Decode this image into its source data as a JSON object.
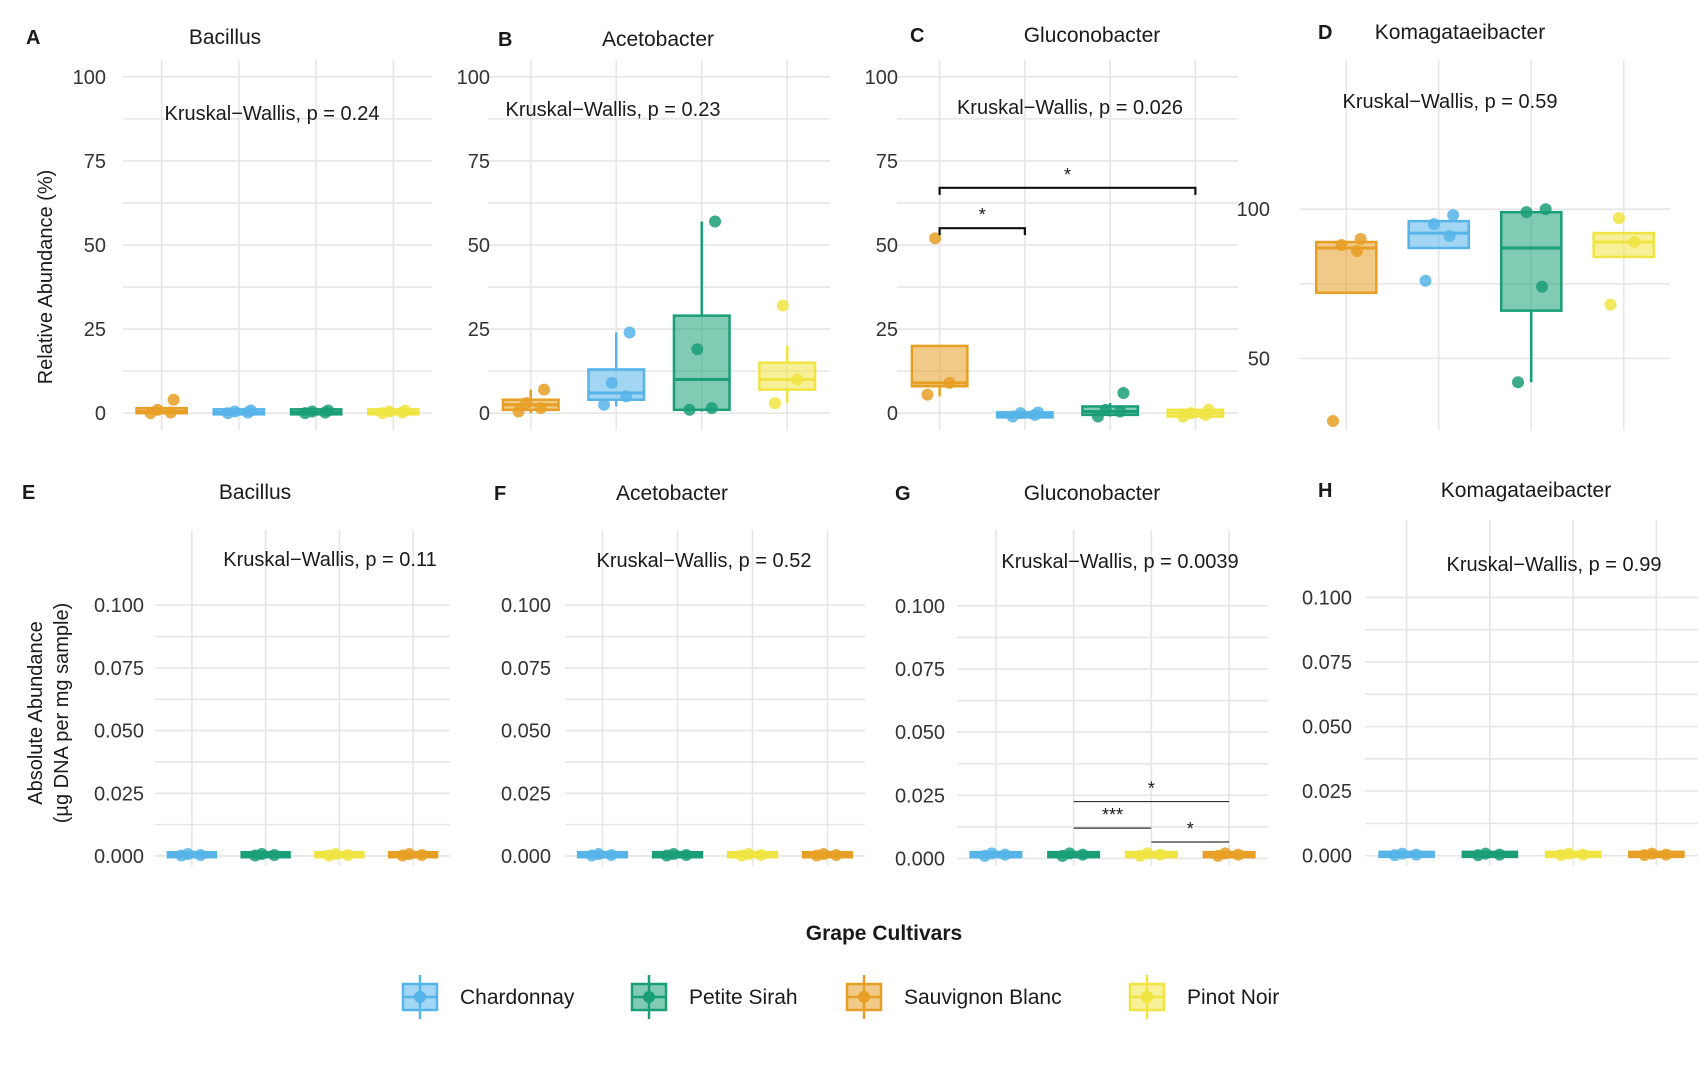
{
  "colors": {
    "Chardonnay": "#56B4E9",
    "Petite Sirah": "#1A9E77",
    "Sauvignon Blanc": "#E69F24",
    "Pinot Noir": "#F0E442"
  },
  "row_labels": {
    "top": "Relative Abundance (%)",
    "bottom_line1": "Absolute Abundance",
    "bottom_line2": "(µg DNA per mg sample)"
  },
  "legend": {
    "title": "Grape Cultivars",
    "entries": [
      "Chardonnay",
      "Petite Sirah",
      "Sauvignon Blanc",
      "Pinot Noir"
    ]
  },
  "chart_data": [
    {
      "panel": "A",
      "title": "Bacillus",
      "type": "box",
      "annotation": "Kruskal−Wallis, p = 0.24",
      "ylim": [
        -5,
        105
      ],
      "yticks": [
        0,
        25,
        50,
        75,
        100
      ],
      "yticklabels": [
        "0",
        "25",
        "50",
        "75",
        "100"
      ],
      "categories": [
        "Sauvignon Blanc",
        "Chardonnay",
        "Petite Sirah",
        "Pinot Noir"
      ],
      "boxes": [
        {
          "q1": 0,
          "median": 0.5,
          "q3": 1.5,
          "lo": 0,
          "hi": 2,
          "points": [
            0,
            0.2,
            1,
            4
          ]
        },
        {
          "q1": 0,
          "median": 0.2,
          "q3": 0.8,
          "lo": 0,
          "hi": 1,
          "points": [
            0,
            0.2,
            0.5,
            0.8
          ]
        },
        {
          "q1": 0,
          "median": 0.2,
          "q3": 0.8,
          "lo": 0,
          "hi": 1,
          "points": [
            0,
            0.2,
            0.5,
            0.8
          ]
        },
        {
          "q1": 0,
          "median": 0.2,
          "q3": 0.8,
          "lo": 0,
          "hi": 1,
          "points": [
            0,
            0.2,
            0.5,
            0.8
          ]
        }
      ],
      "comparisons": []
    },
    {
      "panel": "B",
      "title": "Acetobacter",
      "type": "box",
      "annotation": "Kruskal−Wallis, p = 0.23",
      "ylim": [
        -5,
        105
      ],
      "yticks": [
        0,
        25,
        50,
        75,
        100
      ],
      "yticklabels": [
        "0",
        "25",
        "50",
        "75",
        "100"
      ],
      "categories": [
        "Sauvignon Blanc",
        "Chardonnay",
        "Petite Sirah",
        "Pinot Noir"
      ],
      "boxes": [
        {
          "q1": 1,
          "median": 2.5,
          "q3": 4,
          "lo": 0,
          "hi": 7,
          "points": [
            0.5,
            1.5,
            3,
            7
          ]
        },
        {
          "q1": 4,
          "median": 6,
          "q3": 13,
          "lo": 2,
          "hi": 24,
          "points": [
            2.5,
            5,
            9,
            24
          ]
        },
        {
          "q1": 1,
          "median": 10,
          "q3": 29,
          "lo": 0.5,
          "hi": 57,
          "points": [
            1,
            1.5,
            19,
            57
          ]
        },
        {
          "q1": 7,
          "median": 10,
          "q3": 15,
          "lo": 3,
          "hi": 20,
          "points": [
            3,
            10,
            32
          ]
        }
      ],
      "comparisons": []
    },
    {
      "panel": "C",
      "title": "Gluconobacter",
      "type": "box",
      "annotation": "Kruskal−Wallis, p = 0.026",
      "ylim": [
        -5,
        105
      ],
      "yticks": [
        0,
        25,
        50,
        75,
        100
      ],
      "yticklabels": [
        "0",
        "25",
        "50",
        "75",
        "100"
      ],
      "categories": [
        "Sauvignon Blanc",
        "Chardonnay",
        "Petite Sirah",
        "Pinot Noir"
      ],
      "boxes": [
        {
          "q1": 8,
          "median": 9,
          "q3": 20,
          "lo": 5,
          "hi": 20,
          "points": [
            5.5,
            9,
            52
          ]
        },
        {
          "q1": -1,
          "median": -0.5,
          "q3": 0,
          "lo": -1,
          "hi": 0,
          "points": [
            -1,
            -0.5,
            0,
            0.2
          ]
        },
        {
          "q1": -0.5,
          "median": 0.5,
          "q3": 2,
          "lo": -1,
          "hi": 3,
          "points": [
            -1,
            0.5,
            1,
            6
          ]
        },
        {
          "q1": -1,
          "median": 0,
          "q3": 1,
          "lo": -1,
          "hi": 1,
          "points": [
            -1,
            -0.5,
            0,
            1
          ]
        }
      ],
      "comparisons": [
        {
          "from": 0,
          "to": 1,
          "y": 55,
          "label": "*"
        },
        {
          "from": 0,
          "to": 3,
          "y": 67,
          "label": "*"
        }
      ]
    },
    {
      "panel": "D",
      "title": "Komagataeibacter",
      "type": "box",
      "annotation": "Kruskal−Wallis, p = 0.59",
      "ylim": [
        26,
        150
      ],
      "yticks": [
        50,
        100
      ],
      "yticklabels": [
        "50",
        "100"
      ],
      "categories": [
        "Sauvignon Blanc",
        "Chardonnay",
        "Petite Sirah",
        "Pinot Noir"
      ],
      "boxes": [
        {
          "q1": 72,
          "median": 87,
          "q3": 89,
          "lo": 72,
          "hi": 89,
          "points": [
            29,
            86,
            88,
            90
          ]
        },
        {
          "q1": 87,
          "median": 92,
          "q3": 96,
          "lo": 87,
          "hi": 96,
          "points": [
            76,
            91,
            95,
            98
          ]
        },
        {
          "q1": 66,
          "median": 87,
          "q3": 99,
          "lo": 42,
          "hi": 99,
          "points": [
            42,
            74,
            99,
            100
          ]
        },
        {
          "q1": 84,
          "median": 89,
          "q3": 92,
          "lo": 84,
          "hi": 92,
          "points": [
            68,
            89,
            97
          ]
        }
      ],
      "comparisons": []
    },
    {
      "panel": "E",
      "title": "Bacillus",
      "type": "box",
      "annotation": "Kruskal−Wallis, p = 0.11",
      "ylim": [
        -0.004,
        0.13
      ],
      "yticks": [
        0,
        0.025,
        0.05,
        0.075,
        0.1
      ],
      "yticklabels": [
        "0.000",
        "0.025",
        "0.050",
        "0.075",
        "0.100"
      ],
      "categories": [
        "Chardonnay",
        "Petite Sirah",
        "Pinot Noir",
        "Sauvignon Blanc"
      ],
      "boxes": [
        {
          "q1": 0.0002,
          "median": 0.0004,
          "q3": 0.0008,
          "lo": 0.0001,
          "hi": 0.001,
          "points": [
            0.0002,
            0.0004,
            0.0008
          ]
        },
        {
          "q1": 0.0002,
          "median": 0.0004,
          "q3": 0.0008,
          "lo": 0.0001,
          "hi": 0.001,
          "points": [
            0.0002,
            0.0004,
            0.0008
          ]
        },
        {
          "q1": 0.0002,
          "median": 0.0004,
          "q3": 0.0008,
          "lo": 0.0001,
          "hi": 0.001,
          "points": [
            0.0002,
            0.0004,
            0.0008
          ]
        },
        {
          "q1": 0.0002,
          "median": 0.0004,
          "q3": 0.0008,
          "lo": 0.0001,
          "hi": 0.001,
          "points": [
            0.0002,
            0.0004,
            0.0008
          ]
        }
      ],
      "comparisons": []
    },
    {
      "panel": "F",
      "title": "Acetobacter",
      "type": "box",
      "annotation": "Kruskal−Wallis, p = 0.52",
      "ylim": [
        -0.004,
        0.13
      ],
      "yticks": [
        0,
        0.025,
        0.05,
        0.075,
        0.1
      ],
      "yticklabels": [
        "0.000",
        "0.025",
        "0.050",
        "0.075",
        "0.100"
      ],
      "categories": [
        "Chardonnay",
        "Petite Sirah",
        "Pinot Noir",
        "Sauvignon Blanc"
      ],
      "boxes": [
        {
          "q1": 0.0002,
          "median": 0.0004,
          "q3": 0.0008,
          "lo": 0.0001,
          "hi": 0.001,
          "points": [
            0.0002,
            0.0004,
            0.0008
          ]
        },
        {
          "q1": 0.0002,
          "median": 0.0004,
          "q3": 0.0008,
          "lo": 0.0001,
          "hi": 0.001,
          "points": [
            0.0002,
            0.0004,
            0.0008
          ]
        },
        {
          "q1": 0.0002,
          "median": 0.0004,
          "q3": 0.0008,
          "lo": 0.0001,
          "hi": 0.001,
          "points": [
            0.0002,
            0.0004,
            0.0008
          ]
        },
        {
          "q1": 0.0002,
          "median": 0.0004,
          "q3": 0.0008,
          "lo": 0.0001,
          "hi": 0.001,
          "points": [
            0.0002,
            0.0004,
            0.0008
          ]
        }
      ],
      "comparisons": []
    },
    {
      "panel": "G",
      "title": "Gluconobacter",
      "type": "box",
      "annotation": "Kruskal−Wallis, p = 0.0039",
      "ylim": [
        -0.003,
        0.13
      ],
      "yticks": [
        0,
        0.025,
        0.05,
        0.075,
        0.1
      ],
      "yticklabels": [
        "0.000",
        "0.025",
        "0.050",
        "0.075",
        "0.100"
      ],
      "categories": [
        "Chardonnay",
        "Petite Sirah",
        "Pinot Noir",
        "Sauvignon Blanc"
      ],
      "boxes": [
        {
          "q1": 0.001,
          "median": 0.0015,
          "q3": 0.002,
          "lo": 0.0008,
          "hi": 0.0022,
          "points": [
            0.001,
            0.0015,
            0.002
          ]
        },
        {
          "q1": 0.001,
          "median": 0.0015,
          "q3": 0.002,
          "lo": 0.0008,
          "hi": 0.0022,
          "points": [
            0.001,
            0.0015,
            0.002
          ]
        },
        {
          "q1": 0.001,
          "median": 0.0015,
          "q3": 0.002,
          "lo": 0.0008,
          "hi": 0.0022,
          "points": [
            0.001,
            0.0015,
            0.002
          ]
        },
        {
          "q1": 0.001,
          "median": 0.0015,
          "q3": 0.002,
          "lo": 0.0008,
          "hi": 0.0022,
          "points": [
            0.001,
            0.0015,
            0.002
          ]
        }
      ],
      "comparisons": [
        {
          "from": 2,
          "to": 3,
          "y": 0.0065,
          "label": "*",
          "bracket": false
        },
        {
          "from": 1,
          "to": 2,
          "y": 0.012,
          "label": "***",
          "bracket": false
        },
        {
          "from": 1,
          "to": 3,
          "y": 0.0225,
          "label": "*",
          "bracket": false
        }
      ]
    },
    {
      "panel": "H",
      "title": "Komagataeibacter",
      "type": "box",
      "annotation": "Kruskal−Wallis, p = 0.99",
      "ylim": [
        -0.004,
        0.13
      ],
      "yticks": [
        0,
        0.025,
        0.05,
        0.075,
        0.1
      ],
      "yticklabels": [
        "0.000",
        "0.025",
        "0.050",
        "0.075",
        "0.100"
      ],
      "categories": [
        "Chardonnay",
        "Petite Sirah",
        "Pinot Noir",
        "Sauvignon Blanc"
      ],
      "boxes": [
        {
          "q1": 0.0002,
          "median": 0.0004,
          "q3": 0.0008,
          "lo": 0.0001,
          "hi": 0.001,
          "points": [
            0.0002,
            0.0004,
            0.0008
          ]
        },
        {
          "q1": 0.0002,
          "median": 0.0004,
          "q3": 0.0008,
          "lo": 0.0001,
          "hi": 0.001,
          "points": [
            0.0002,
            0.0004,
            0.0008
          ]
        },
        {
          "q1": 0.0002,
          "median": 0.0004,
          "q3": 0.0008,
          "lo": 0.0001,
          "hi": 0.001,
          "points": [
            0.0002,
            0.0004,
            0.0008
          ]
        },
        {
          "q1": 0.0002,
          "median": 0.0004,
          "q3": 0.0008,
          "lo": 0.0001,
          "hi": 0.001,
          "points": [
            0.0002,
            0.0004,
            0.0008
          ]
        }
      ],
      "comparisons": []
    }
  ]
}
